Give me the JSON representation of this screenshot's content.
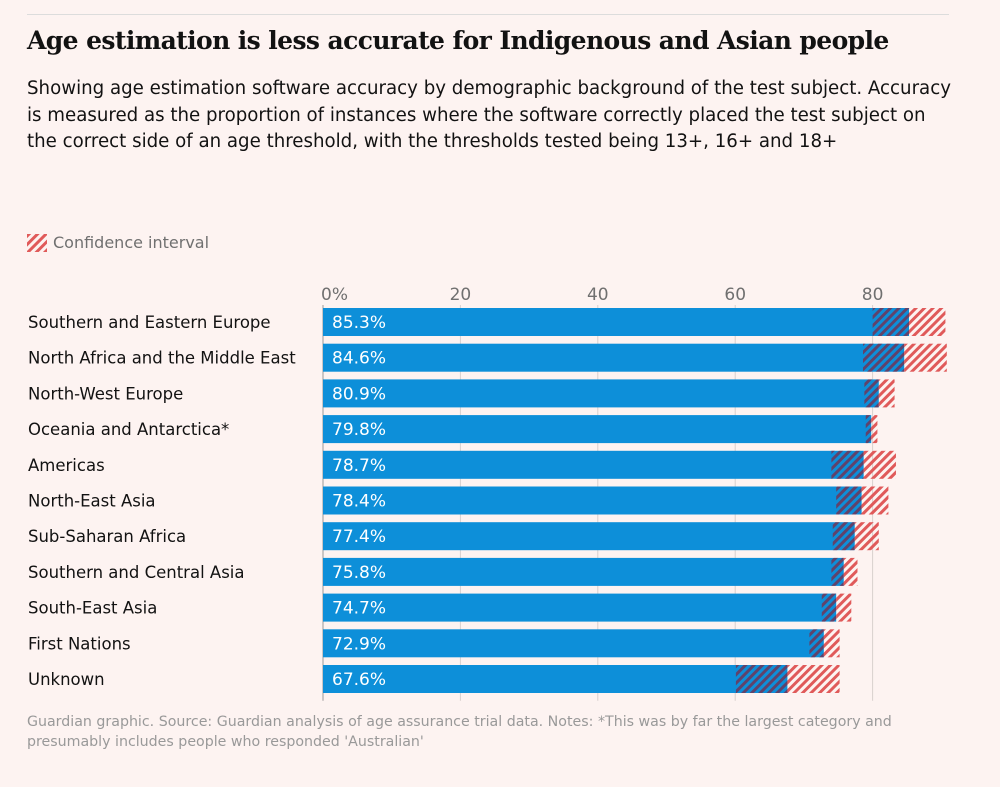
{
  "title": "Age estimation is less accurate for Indigenous and Asian people",
  "subtitle": "Showing age estimation software accuracy by demographic background of the test subject. Accuracy is measured as the proportion of instances where the software correctly placed the test subject on the correct side of an age threshold, with the thresholds tested being 13+, 16+ and 18+",
  "legend_label": "Confidence interval",
  "footer": "Guardian graphic. Source: Guardian analysis of age assurance trial data. Notes: *This was by far the largest category and presumably includes people who responded 'Australian'",
  "colors": {
    "bar": "#0d8fd9",
    "ci": "#e05a5a",
    "ci_dark": "#7a2a48",
    "grid": "#d8d0ce"
  },
  "chart_data": {
    "type": "bar",
    "orientation": "horizontal",
    "xlim": [
      0,
      90
    ],
    "ticks": [
      0,
      20,
      40,
      60,
      80
    ],
    "tick_labels": [
      "0%",
      "20",
      "40",
      "60",
      "80"
    ],
    "categories": [
      "Southern and Eastern Europe",
      "North Africa and the Middle East",
      "North-West Europe",
      "Oceania and Antarctica*",
      "Americas",
      "North-East Asia",
      "Sub-Saharan Africa",
      "Southern and Central Asia",
      "South-East Asia",
      "First Nations",
      "Unknown"
    ],
    "values": [
      85.3,
      84.6,
      80.9,
      79.8,
      78.7,
      78.4,
      77.4,
      75.8,
      74.7,
      72.9,
      67.6
    ],
    "value_labels": [
      "85.3%",
      "84.6%",
      "80.9%",
      "79.8%",
      "78.7%",
      "78.4%",
      "77.4%",
      "75.8%",
      "74.7%",
      "72.9%",
      "67.6%"
    ],
    "ci_lower": [
      80.0,
      78.6,
      78.8,
      79.0,
      74.0,
      74.7,
      74.2,
      74.0,
      72.6,
      70.8,
      60.1
    ],
    "ci_upper": [
      90.6,
      90.8,
      83.2,
      80.7,
      83.4,
      82.3,
      80.9,
      77.8,
      76.9,
      75.2,
      75.2
    ]
  }
}
